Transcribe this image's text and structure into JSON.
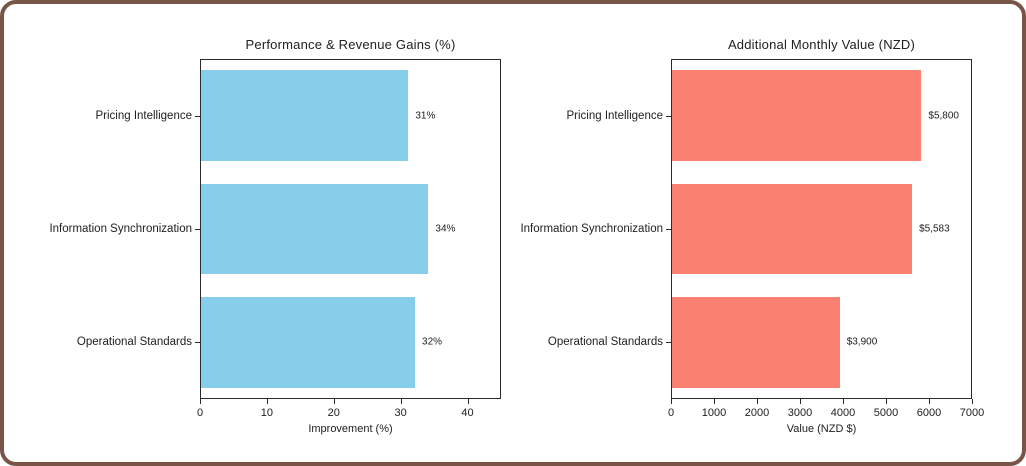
{
  "frame": {
    "border_color": "#795548",
    "background_color": "#ffffff"
  },
  "chart_data": [
    {
      "type": "bar",
      "orientation": "horizontal",
      "title": "Performance & Revenue Gains (%)",
      "categories": [
        "Pricing Intelligence",
        "Information Synchronization",
        "Operational Standards"
      ],
      "values": [
        31,
        34,
        32
      ],
      "value_labels": [
        "31%",
        "34%",
        "32%"
      ],
      "xlabel": "Improvement (%)",
      "ylabel": "",
      "xlim": [
        0,
        45
      ],
      "xticks": [
        0,
        10,
        20,
        30,
        40
      ],
      "bar_color": "#87CEEB",
      "grid": false,
      "legend": "none"
    },
    {
      "type": "bar",
      "orientation": "horizontal",
      "title": "Additional Monthly Value (NZD)",
      "categories": [
        "Pricing Intelligence",
        "Information Synchronization",
        "Operational Standards"
      ],
      "values": [
        5800,
        5583,
        3900
      ],
      "value_labels": [
        "$5,800",
        "$5,583",
        "$3,900"
      ],
      "xlabel": "Value (NZD $)",
      "ylabel": "",
      "xlim": [
        0,
        7000
      ],
      "xticks": [
        0,
        1000,
        2000,
        3000,
        4000,
        5000,
        6000,
        7000
      ],
      "bar_color": "#FA8072",
      "grid": false,
      "legend": "none"
    }
  ]
}
